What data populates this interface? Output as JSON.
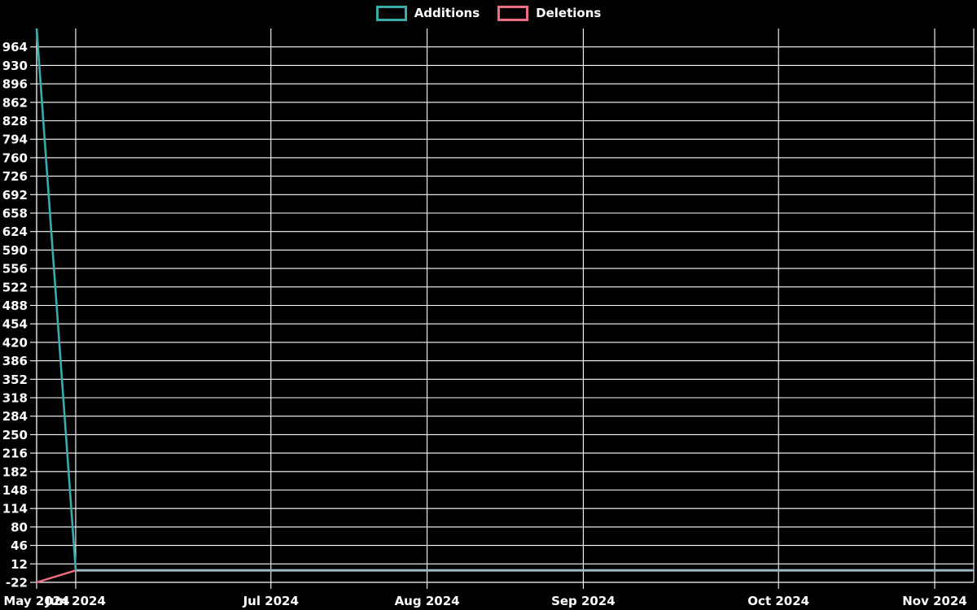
{
  "legend": {
    "additions_label": "Additions",
    "deletions_label": "Deletions"
  },
  "chart_data": {
    "type": "line",
    "title": "",
    "xlabel": "",
    "ylabel": "",
    "n_points": 25,
    "x_tick_labels": [
      "May 2024",
      "Jun 2024",
      "Jul 2024",
      "Aug 2024",
      "Sep 2024",
      "Oct 2024",
      "Nov 2024"
    ],
    "x_tick_indices": [
      0,
      1,
      6,
      10,
      14,
      19,
      23
    ],
    "y_tick_labels": [
      964,
      930,
      896,
      862,
      828,
      794,
      760,
      726,
      692,
      658,
      624,
      590,
      556,
      522,
      488,
      454,
      420,
      386,
      352,
      318,
      284,
      250,
      216,
      182,
      148,
      114,
      80,
      46,
      12,
      -22
    ],
    "ylim": [
      -22,
      998
    ],
    "ytick_step": 34,
    "grid": true,
    "legend_position": "top-center",
    "background_color": "#000000",
    "grid_color": "#ffffff",
    "text_color": "#ffffff",
    "overlap_line_color": "#9eb6c2",
    "series": [
      {
        "name": "Additions",
        "color": "#3aacac",
        "values": [
          998,
          0,
          0,
          0,
          0,
          0,
          0,
          0,
          0,
          0,
          0,
          0,
          0,
          0,
          0,
          0,
          0,
          0,
          0,
          0,
          0,
          0,
          0,
          0,
          0
        ]
      },
      {
        "name": "Deletions",
        "color": "#ef6d80",
        "values": [
          -22,
          0,
          0,
          0,
          0,
          0,
          0,
          0,
          0,
          0,
          0,
          0,
          0,
          0,
          0,
          0,
          0,
          0,
          0,
          0,
          0,
          0,
          0,
          0,
          0
        ]
      }
    ]
  }
}
